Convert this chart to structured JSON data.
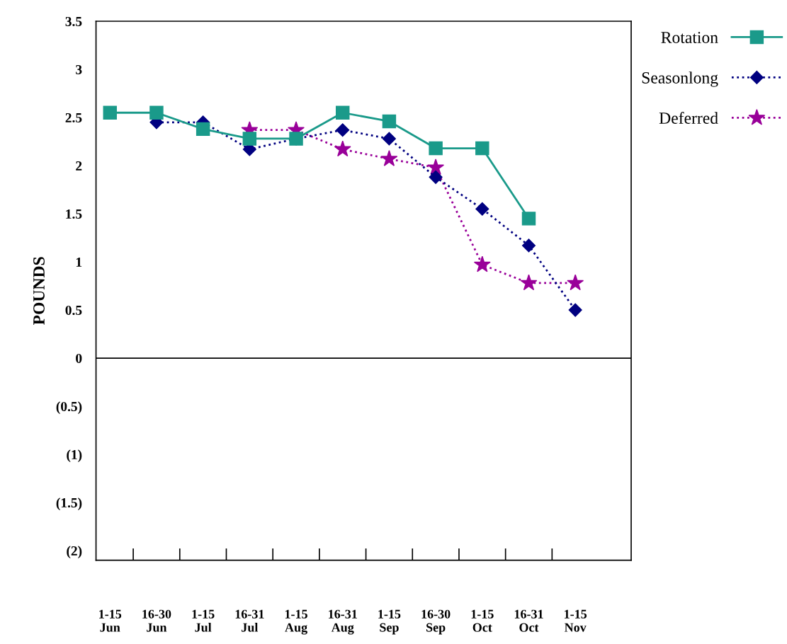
{
  "chart_data": {
    "type": "line",
    "ylabel": "POUNDS",
    "categories": [
      "1-15\nJun",
      "16-30\nJun",
      "1-15\nJul",
      "16-31\nJul",
      "1-15\nAug",
      "16-31\nAug",
      "1-15\nSep",
      "16-30\nSep",
      "1-15\nOct",
      "16-31\nOct",
      "1-15\nNov"
    ],
    "series": [
      {
        "name": "Rotation",
        "color": "#1a9a8a",
        "marker": "square",
        "line_style": "solid",
        "values": [
          2.55,
          2.55,
          2.38,
          2.28,
          2.28,
          2.55,
          2.46,
          2.18,
          2.18,
          1.45,
          null
        ]
      },
      {
        "name": "Seasonlong",
        "color": "#000080",
        "marker": "diamond",
        "line_style": "dotted",
        "values": [
          null,
          2.45,
          2.45,
          2.17,
          2.28,
          2.37,
          2.28,
          1.88,
          1.55,
          1.17,
          0.5
        ]
      },
      {
        "name": "Deferred",
        "color": "#990099",
        "marker": "star",
        "line_style": "dotted",
        "values": [
          null,
          null,
          null,
          2.37,
          2.37,
          2.17,
          2.07,
          1.98,
          0.97,
          0.78,
          0.78
        ]
      }
    ],
    "ylim": [
      -2.1,
      3.5
    ],
    "yticks": [
      {
        "value": 3.5,
        "label": "3.5"
      },
      3,
      {
        "value": 2.5,
        "label": "2.5"
      },
      2,
      {
        "value": 1.5,
        "label": "1.5"
      },
      1,
      {
        "value": 0.5,
        "label": "0.5"
      },
      0,
      {
        "value": -0.5,
        "label": "(0.5)"
      },
      {
        "value": -1,
        "label": "(1)"
      },
      {
        "value": -1.5,
        "label": "(1.5)"
      },
      {
        "value": -2,
        "label": "(2)"
      }
    ],
    "ref_lines": [
      {
        "axis": "y",
        "value": 0,
        "color": "#000000"
      }
    ],
    "grid": false,
    "legend": "top right"
  }
}
